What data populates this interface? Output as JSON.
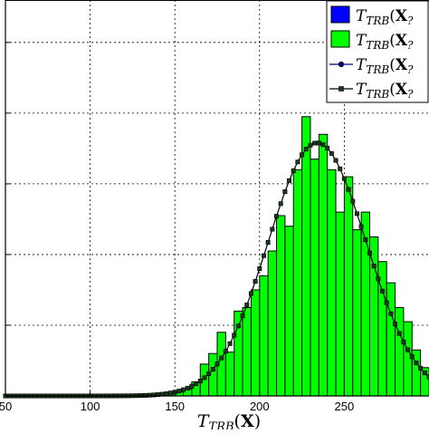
{
  "chart_data": {
    "type": "bar",
    "title": "",
    "xlabel": "T_TRB(X)",
    "ylabel": "",
    "xlim": [
      50,
      300
    ],
    "ylim": [
      0,
      5.6
    ],
    "xticks": [
      50,
      100,
      150,
      200,
      250
    ],
    "xtick_labels": [
      "50",
      "100",
      "150",
      "200",
      "250"
    ],
    "grid": true,
    "legend_position": "top-right",
    "legend": [
      {
        "label": "T_TRB(X_?",
        "style": "bar",
        "color": "#0000ff"
      },
      {
        "label": "T_TRB(X_?",
        "style": "bar",
        "color": "#00ff00"
      },
      {
        "label": "T_TRB(X_?",
        "style": "line-circle",
        "color": "#000080"
      },
      {
        "label": "T_TRB(X_?",
        "style": "line-square",
        "color": "#1a3a1a"
      }
    ],
    "series": [
      {
        "name": "histogram",
        "type": "bar",
        "color": "#00ff00",
        "edge_color": "#000000",
        "bin_width": 5,
        "bin_starts": [
          145,
          150,
          155,
          160,
          165,
          170,
          175,
          180,
          185,
          190,
          195,
          200,
          205,
          210,
          215,
          220,
          225,
          230,
          235,
          240,
          245,
          250,
          255,
          260,
          265,
          270,
          275,
          280,
          285,
          290,
          295
        ],
        "values": [
          0.03,
          0.06,
          0.1,
          0.2,
          0.45,
          0.6,
          0.9,
          0.62,
          1.2,
          1.25,
          1.5,
          1.7,
          2.05,
          2.55,
          2.4,
          3.2,
          3.95,
          3.35,
          3.7,
          3.2,
          2.6,
          3.1,
          2.35,
          2.6,
          2.25,
          1.9,
          1.6,
          1.25,
          1.05,
          0.65,
          0.4
        ]
      },
      {
        "name": "fitted density",
        "type": "line",
        "color": "#000000",
        "marker": "square",
        "mean": 234,
        "sd": 29,
        "peak": 3.58,
        "x_step": 2.5
      }
    ]
  }
}
